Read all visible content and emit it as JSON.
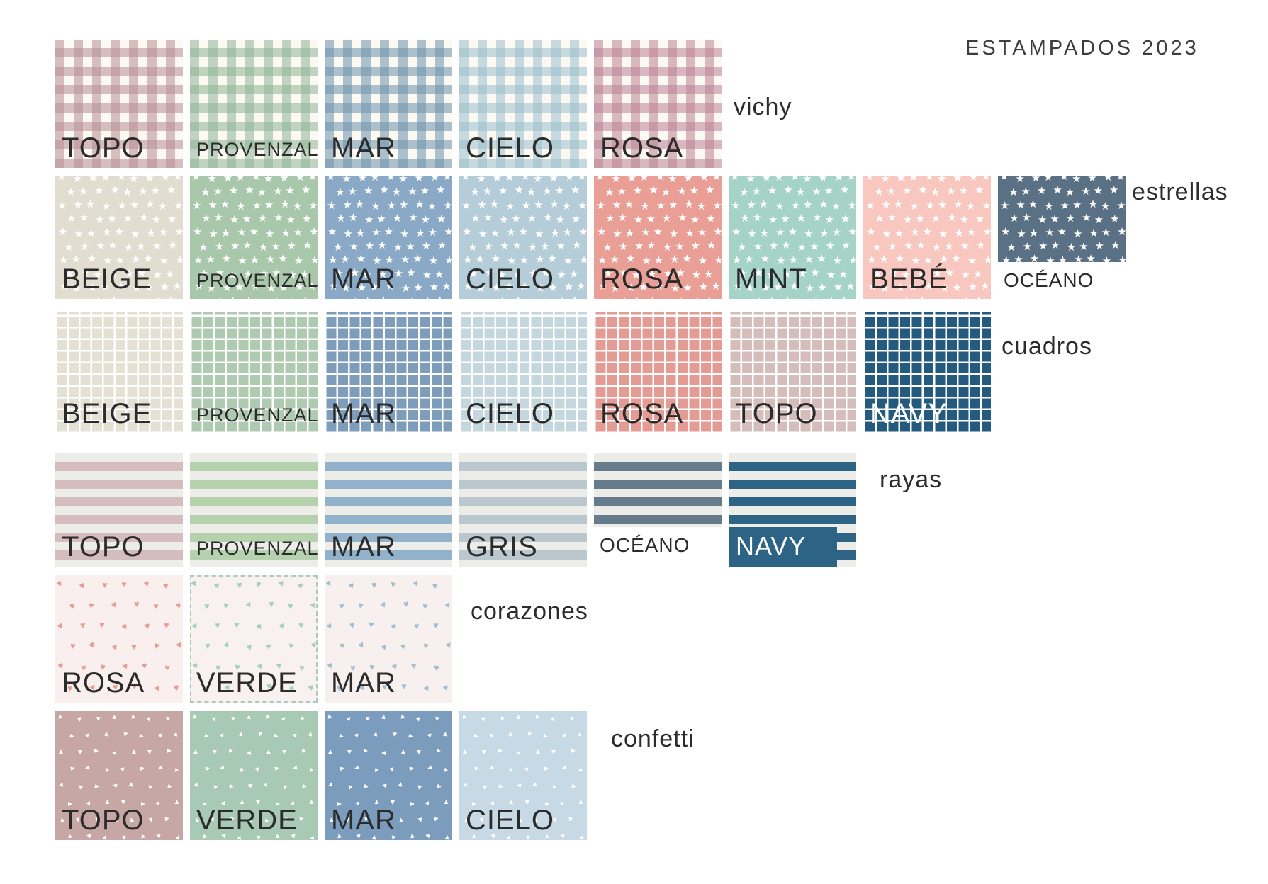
{
  "title": "ESTAMPADOS 2023",
  "glyphs": {
    "star-icon": "★",
    "heart-icon": "♥",
    "triangle-icon": "▲"
  },
  "palette": {
    "navy": "#2d6384",
    "cream": "#fcf9f3",
    "stripe_bg": "#ecece8",
    "label_dark": "#2b2b2b",
    "label_white": "#ffffff"
  },
  "rows": [
    {
      "group": "vichy",
      "group_label": "vichy",
      "pattern": "gingham",
      "swatches": [
        {
          "name": "TOPO",
          "color": "#b78f93"
        },
        {
          "name": "PROVENZAL",
          "color": "#8fb598"
        },
        {
          "name": "MAR",
          "color": "#6e93ac"
        },
        {
          "name": "CIELO",
          "color": "#9cc0cd"
        },
        {
          "name": "ROSA",
          "color": "#bb8495"
        }
      ]
    },
    {
      "group": "estrellas",
      "group_label": "estrellas",
      "pattern": "stars",
      "swatches": [
        {
          "name": "BEIGE",
          "color": "#e2ddd1"
        },
        {
          "name": "PROVENZAL",
          "color": "#a9c8ab"
        },
        {
          "name": "MAR",
          "color": "#8aa9c7"
        },
        {
          "name": "CIELO",
          "color": "#b4cdd8"
        },
        {
          "name": "ROSA",
          "color": "#e99f95"
        },
        {
          "name": "MINT",
          "color": "#a5d3c5"
        },
        {
          "name": "BEBÉ",
          "color": "#f8c7bf"
        },
        {
          "name": "OCÉANO",
          "color": "#5a7084",
          "short": true,
          "label_below": true
        }
      ]
    },
    {
      "group": "cuadros",
      "group_label": "cuadros",
      "pattern": "grid",
      "swatches": [
        {
          "name": "BEIGE",
          "color": "#e5e0d4"
        },
        {
          "name": "PROVENZAL",
          "color": "#aecbb2"
        },
        {
          "name": "MAR",
          "color": "#7e9dbb"
        },
        {
          "name": "CIELO",
          "color": "#c4d6de"
        },
        {
          "name": "ROSA",
          "color": "#e49b93"
        },
        {
          "name": "TOPO",
          "color": "#d4bdbb"
        },
        {
          "name": "NAVY",
          "color": "#235a7d",
          "text_color": "#ffffff"
        }
      ]
    },
    {
      "group": "rayas",
      "group_label": "rayas",
      "pattern": "stripes",
      "swatches": [
        {
          "name": "TOPO",
          "color": "#d5bcbe"
        },
        {
          "name": "PROVENZAL",
          "color": "#b5d1ae"
        },
        {
          "name": "MAR",
          "color": "#92b1ca"
        },
        {
          "name": "GRIS",
          "color": "#bac7cf"
        },
        {
          "name": "OCÉANO",
          "color": "#667b8c",
          "short": true,
          "label_below": true
        },
        {
          "name": "NAVY",
          "color": "#2d6384",
          "label_style": "navy-block"
        }
      ]
    },
    {
      "group": "corazones",
      "group_label": "corazones",
      "pattern": "hearts",
      "swatches": [
        {
          "name": "ROSA",
          "color": "#e79c96",
          "bg": "#f8efee"
        },
        {
          "name": "VERDE",
          "color": "#a6cfbf",
          "bg": "#f8f1f0",
          "dashed_border": true
        },
        {
          "name": "MAR",
          "color": "#a2bed0",
          "bg": "#f7f0ef"
        }
      ]
    },
    {
      "group": "confetti",
      "group_label": "confetti",
      "pattern": "confetti",
      "swatches": [
        {
          "name": "TOPO",
          "color": "#c7a7a3"
        },
        {
          "name": "VERDE",
          "color": "#a8c9b3"
        },
        {
          "name": "MAR",
          "color": "#7b9cbd"
        },
        {
          "name": "CIELO",
          "color": "#c6d9e5"
        }
      ]
    }
  ]
}
